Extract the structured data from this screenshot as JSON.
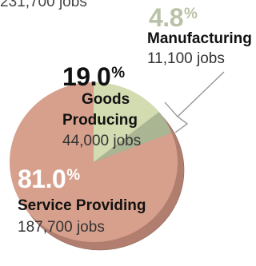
{
  "chart_data": {
    "type": "pie",
    "slices": [
      {
        "name": "Manufacturing",
        "percent": "4.8",
        "jobs": "11,100 jobs",
        "color": "#aab593"
      },
      {
        "name": "Goods Producing",
        "name_lines": [
          "Goods",
          "Producing"
        ],
        "percent": "19.0",
        "jobs": "44,000 jobs",
        "color": "#d3dbb1"
      },
      {
        "name": "Service Providing",
        "percent": "81.0",
        "jobs": "187,700 jobs",
        "color": "#d7a08c"
      }
    ],
    "values": [
      4.8,
      19.0,
      81.0
    ],
    "top_cutoff_text": "231,700 jobs",
    "percent_symbol": "%",
    "colors": {
      "depth": "#b17e6f",
      "edge": "#8a6559",
      "leader": "#909090"
    }
  }
}
